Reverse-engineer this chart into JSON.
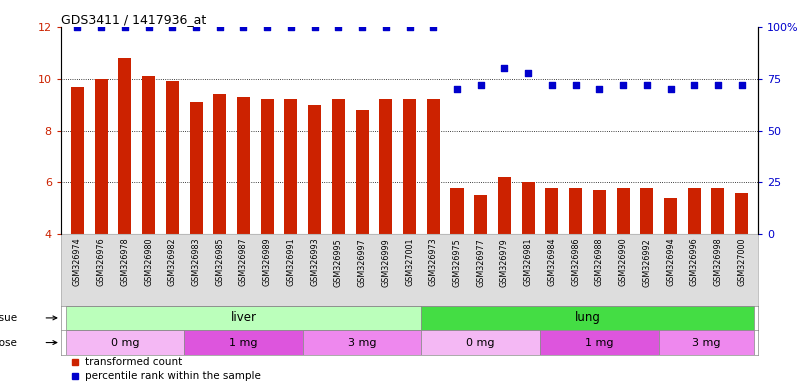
{
  "title": "GDS3411 / 1417936_at",
  "categories": [
    "GSM326974",
    "GSM326976",
    "GSM326978",
    "GSM326980",
    "GSM326982",
    "GSM326983",
    "GSM326985",
    "GSM326987",
    "GSM326989",
    "GSM326991",
    "GSM326993",
    "GSM326995",
    "GSM326997",
    "GSM326999",
    "GSM327001",
    "GSM326973",
    "GSM326975",
    "GSM326977",
    "GSM326979",
    "GSM326981",
    "GSM326984",
    "GSM326986",
    "GSM326988",
    "GSM326990",
    "GSM326992",
    "GSM326994",
    "GSM326996",
    "GSM326998",
    "GSM327000"
  ],
  "bar_values": [
    9.7,
    10.0,
    10.8,
    10.1,
    9.9,
    9.1,
    9.4,
    9.3,
    9.2,
    9.2,
    9.0,
    9.2,
    8.8,
    9.2,
    9.2,
    9.2,
    5.8,
    5.5,
    6.2,
    6.0,
    5.8,
    5.8,
    5.7,
    5.8,
    5.8,
    5.4,
    5.8,
    5.8,
    5.6
  ],
  "percentile_values": [
    100,
    100,
    100,
    100,
    100,
    100,
    100,
    100,
    100,
    100,
    100,
    100,
    100,
    100,
    100,
    100,
    70,
    72,
    80,
    78,
    72,
    72,
    70,
    72,
    72,
    70,
    72,
    72,
    72
  ],
  "bar_color": "#cc2200",
  "dot_color": "#0000cc",
  "ylim_left": [
    4,
    12
  ],
  "ylim_right": [
    0,
    100
  ],
  "yticks_left": [
    4,
    6,
    8,
    10,
    12
  ],
  "yticks_right": [
    0,
    25,
    50,
    75,
    100
  ],
  "ytick_labels_right": [
    "0",
    "25",
    "50",
    "75",
    "100%"
  ],
  "hgrid_at": [
    6,
    8,
    10
  ],
  "tissue_groups": [
    {
      "label": "liver",
      "start": 0,
      "end": 15,
      "color": "#bbffbb"
    },
    {
      "label": "lung",
      "start": 15,
      "end": 29,
      "color": "#44dd44"
    }
  ],
  "dose_groups": [
    {
      "label": "0 mg",
      "start": 0,
      "end": 5,
      "color": "#f4b8f4"
    },
    {
      "label": "1 mg",
      "start": 5,
      "end": 10,
      "color": "#dd55dd"
    },
    {
      "label": "3 mg",
      "start": 10,
      "end": 15,
      "color": "#ee88ee"
    },
    {
      "label": "0 mg",
      "start": 15,
      "end": 20,
      "color": "#f4b8f4"
    },
    {
      "label": "1 mg",
      "start": 20,
      "end": 25,
      "color": "#dd55dd"
    },
    {
      "label": "3 mg",
      "start": 25,
      "end": 29,
      "color": "#ee88ee"
    }
  ],
  "legend_red_label": "transformed count",
  "legend_blue_label": "percentile rank within the sample",
  "bar_width": 0.55,
  "xticklabel_bg": "#dddddd"
}
